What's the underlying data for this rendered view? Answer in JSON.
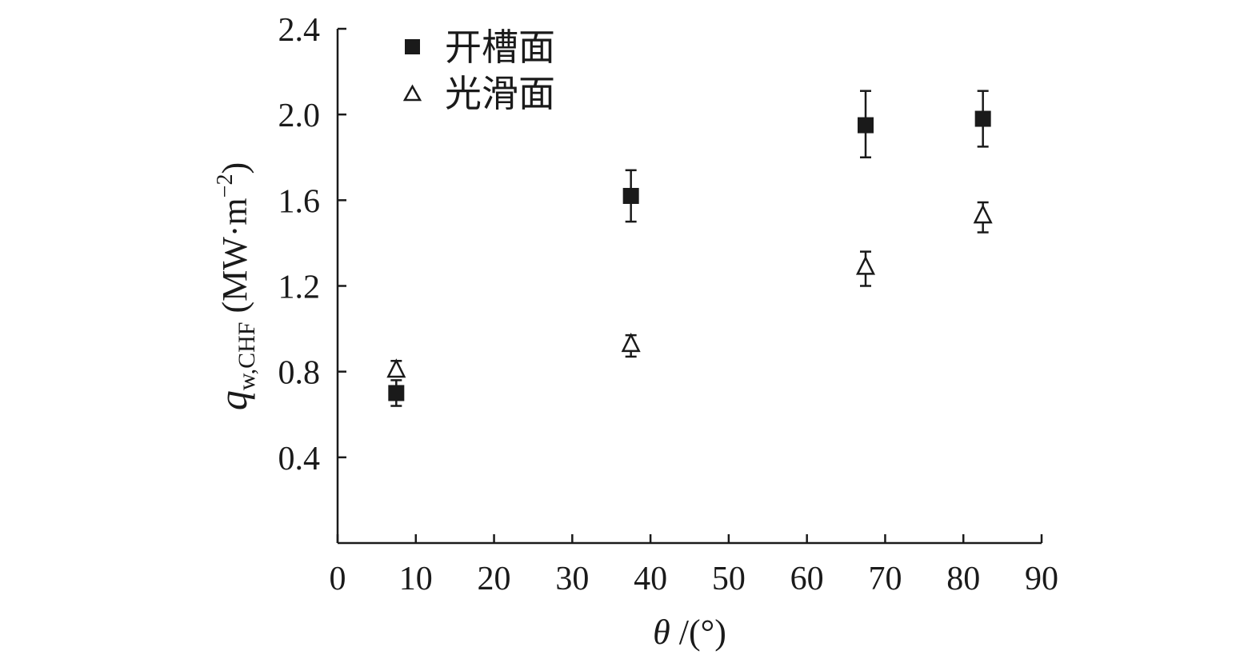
{
  "chart_data": {
    "type": "scatter",
    "xlabel": {
      "symbol": "θ",
      "unit": " /(°)"
    },
    "ylabel": {
      "q": "q",
      "sub": "w,CHF",
      "unit_open": " (MW·m",
      "exp": "−2",
      "unit_close": ")"
    },
    "xlim": [
      0,
      90
    ],
    "ylim": [
      0,
      2.4
    ],
    "x_ticks": [
      0,
      10,
      20,
      30,
      40,
      50,
      60,
      70,
      80,
      90
    ],
    "x_tick_labels": [
      "0",
      "10",
      "20",
      "30",
      "40",
      "50",
      "60",
      "70",
      "80",
      "90"
    ],
    "y_ticks": [
      0.4,
      0.8,
      1.2,
      1.6,
      2.0,
      2.4
    ],
    "y_tick_labels": [
      "0.4",
      "0.8",
      "1.2",
      "1.6",
      "2.0",
      "2.4"
    ],
    "grid": false,
    "legend": "top-left",
    "series": [
      {
        "name": "开槽面",
        "marker": "filled-square",
        "color": "#1a1a1a",
        "x": [
          7.5,
          37.5,
          67.5,
          82.5
        ],
        "y": [
          0.7,
          1.62,
          1.95,
          1.98
        ],
        "err_low": [
          0.06,
          0.12,
          0.15,
          0.13
        ],
        "err_high": [
          0.06,
          0.12,
          0.16,
          0.13
        ]
      },
      {
        "name": "光滑面",
        "marker": "open-triangle",
        "color": "#1a1a1a",
        "x": [
          7.5,
          37.5,
          67.5,
          82.5
        ],
        "y": [
          0.81,
          0.93,
          1.29,
          1.53
        ],
        "err_low": [
          0.03,
          0.06,
          0.09,
          0.08
        ],
        "err_high": [
          0.04,
          0.04,
          0.07,
          0.06
        ]
      }
    ]
  }
}
